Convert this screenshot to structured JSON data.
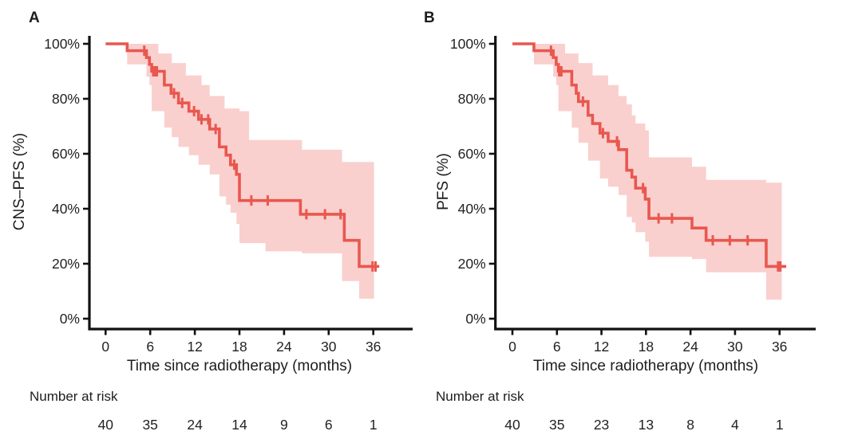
{
  "figure": {
    "colors": {
      "curve": "#e9574f",
      "band": "rgba(233,87,79,0.28)",
      "axis": "#111111",
      "text": "#232323"
    },
    "panels": [
      {
        "letter": "A",
        "y_title": "CNS–PFS (%)",
        "x_title": "Time since radiotherapy (months)",
        "risk_label": "Number at risk"
      },
      {
        "letter": "B",
        "y_title": "PFS (%)",
        "x_title": "Time since radiotherapy (months)",
        "risk_label": "Number at risk"
      }
    ]
  },
  "chart_data": [
    {
      "type": "line",
      "subtype": "kaplan-meier-step-with-ci-band",
      "panel": "A",
      "ylabel": "CNS–PFS (%)",
      "xlabel": "Time since radiotherapy (months)",
      "xlim": [
        0,
        41
      ],
      "ylim": [
        0,
        100
      ],
      "x_ticks": [
        0,
        6,
        12,
        18,
        24,
        30,
        36
      ],
      "y_ticks": [
        0,
        20,
        40,
        60,
        80,
        100
      ],
      "y_tick_labels": [
        "0%",
        "20%",
        "40%",
        "60%",
        "80%",
        "100%"
      ],
      "grid": false,
      "legend": false,
      "series": [
        {
          "name": "CNS-PFS",
          "steps": [
            [
              0,
              100
            ],
            [
              2.9,
              97.5
            ],
            [
              5.5,
              95
            ],
            [
              5.9,
              92.5
            ],
            [
              6.2,
              90
            ],
            [
              7.9,
              85
            ],
            [
              8.8,
              82
            ],
            [
              9.8,
              78.5
            ],
            [
              11.2,
              75.5
            ],
            [
              12.5,
              72.5
            ],
            [
              14.0,
              69
            ],
            [
              15.3,
              62.5
            ],
            [
              16.2,
              59.5
            ],
            [
              16.8,
              56
            ],
            [
              17.6,
              52.5
            ],
            [
              18.0,
              43
            ],
            [
              26.2,
              38
            ],
            [
              32.1,
              28.5
            ],
            [
              34.1,
              19
            ]
          ],
          "end_time": 36.8,
          "censors": [
            [
              5.2,
              97.5
            ],
            [
              6.4,
              90
            ],
            [
              6.65,
              90
            ],
            [
              6.9,
              90
            ],
            [
              9.2,
              82
            ],
            [
              10.3,
              78.5
            ],
            [
              11.9,
              75.5
            ],
            [
              12.9,
              72.5
            ],
            [
              13.8,
              72.5
            ],
            [
              14.8,
              69
            ],
            [
              17.3,
              56
            ],
            [
              19.6,
              43
            ],
            [
              21.8,
              43
            ],
            [
              27.0,
              38
            ],
            [
              29.5,
              38
            ],
            [
              31.6,
              38
            ],
            [
              35.9,
              19
            ],
            [
              36.3,
              19
            ]
          ],
          "ci_band": [
            [
              2.9,
              92.5,
              100
            ],
            [
              5.5,
              88,
              100
            ],
            [
              5.9,
              85,
              100
            ],
            [
              6.2,
              75.5,
              100
            ],
            [
              7.1,
              75.5,
              96.5
            ],
            [
              7.9,
              69.5,
              96.5
            ],
            [
              8.9,
              66,
              93
            ],
            [
              9.8,
              62.5,
              93
            ],
            [
              10.8,
              62.5,
              88.5
            ],
            [
              11.2,
              59.5,
              88.5
            ],
            [
              12.5,
              56,
              88.5
            ],
            [
              12.9,
              56,
              85
            ],
            [
              14.0,
              52.5,
              81
            ],
            [
              15.3,
              44.5,
              81
            ],
            [
              16.0,
              44.5,
              76.5
            ],
            [
              16.2,
              41.5,
              76.5
            ],
            [
              16.8,
              38.5,
              76.5
            ],
            [
              17.6,
              34.5,
              76.5
            ],
            [
              18.0,
              27.5,
              75.5
            ],
            [
              19.3,
              27.5,
              65
            ],
            [
              21.5,
              24.5,
              65
            ],
            [
              26.4,
              23.8,
              61.5
            ],
            [
              31.8,
              13.7,
              57
            ],
            [
              34.1,
              7.3,
              57
            ]
          ],
          "band_end_time": 36.1
        }
      ],
      "risk_table": {
        "label": "Number at risk",
        "times": [
          0,
          6,
          12,
          18,
          24,
          30,
          36
        ],
        "counts": [
          40,
          35,
          24,
          14,
          9,
          6,
          1
        ]
      }
    },
    {
      "type": "line",
      "subtype": "kaplan-meier-step-with-ci-band",
      "panel": "B",
      "ylabel": "PFS (%)",
      "xlabel": "Time since radiotherapy (months)",
      "xlim": [
        0,
        41
      ],
      "ylim": [
        0,
        100
      ],
      "x_ticks": [
        0,
        6,
        12,
        18,
        24,
        30,
        36
      ],
      "y_ticks": [
        0,
        20,
        40,
        60,
        80,
        100
      ],
      "y_tick_labels": [
        "0%",
        "20%",
        "40%",
        "60%",
        "80%",
        "100%"
      ],
      "grid": false,
      "legend": false,
      "series": [
        {
          "name": "PFS",
          "steps": [
            [
              0,
              100
            ],
            [
              2.9,
              97.5
            ],
            [
              5.5,
              95
            ],
            [
              5.9,
              92.5
            ],
            [
              6.2,
              90
            ],
            [
              8.0,
              85
            ],
            [
              8.6,
              82
            ],
            [
              8.9,
              79
            ],
            [
              10.2,
              74
            ],
            [
              10.8,
              71
            ],
            [
              11.8,
              67.5
            ],
            [
              12.9,
              64.5
            ],
            [
              14.3,
              61.5
            ],
            [
              15.4,
              54
            ],
            [
              16.1,
              51.5
            ],
            [
              16.6,
              47.5
            ],
            [
              17.9,
              43.5
            ],
            [
              18.4,
              36.5
            ],
            [
              24.2,
              33
            ],
            [
              26.1,
              28.5
            ],
            [
              34.2,
              19
            ]
          ],
          "end_time": 36.9,
          "censors": [
            [
              5.2,
              97.5
            ],
            [
              6.3,
              90
            ],
            [
              6.6,
              90
            ],
            [
              9.5,
              79
            ],
            [
              12.2,
              67.5
            ],
            [
              14.1,
              64.5
            ],
            [
              17.6,
              47.5
            ],
            [
              19.7,
              36.5
            ],
            [
              21.5,
              36.5
            ],
            [
              27.0,
              28.5
            ],
            [
              29.3,
              28.5
            ],
            [
              31.7,
              28.5
            ],
            [
              35.8,
              19
            ],
            [
              36.1,
              19
            ]
          ],
          "ci_band": [
            [
              2.9,
              92.5,
              100
            ],
            [
              5.5,
              88,
              100
            ],
            [
              5.9,
              85,
              100
            ],
            [
              6.2,
              75.5,
              100
            ],
            [
              7.1,
              75.5,
              96.5
            ],
            [
              8.0,
              69.5,
              96.5
            ],
            [
              8.9,
              64,
              93
            ],
            [
              10.2,
              57.5,
              93
            ],
            [
              10.8,
              57.5,
              88.5
            ],
            [
              11.8,
              51,
              88.5
            ],
            [
              12.9,
              48,
              85
            ],
            [
              14.3,
              45,
              81
            ],
            [
              15.4,
              37,
              78
            ],
            [
              16.1,
              35,
              74
            ],
            [
              16.6,
              31.5,
              71
            ],
            [
              17.9,
              28,
              68.5
            ],
            [
              18.4,
              22.5,
              58.7
            ],
            [
              24.2,
              21.7,
              55.3
            ],
            [
              26.1,
              16.9,
              50.5
            ],
            [
              34.2,
              6.9,
              49.5
            ]
          ],
          "band_end_time": 36.3
        }
      ],
      "risk_table": {
        "label": "Number at risk",
        "times": [
          0,
          6,
          12,
          18,
          24,
          30,
          36
        ],
        "counts": [
          40,
          35,
          23,
          13,
          8,
          4,
          1
        ]
      }
    }
  ]
}
